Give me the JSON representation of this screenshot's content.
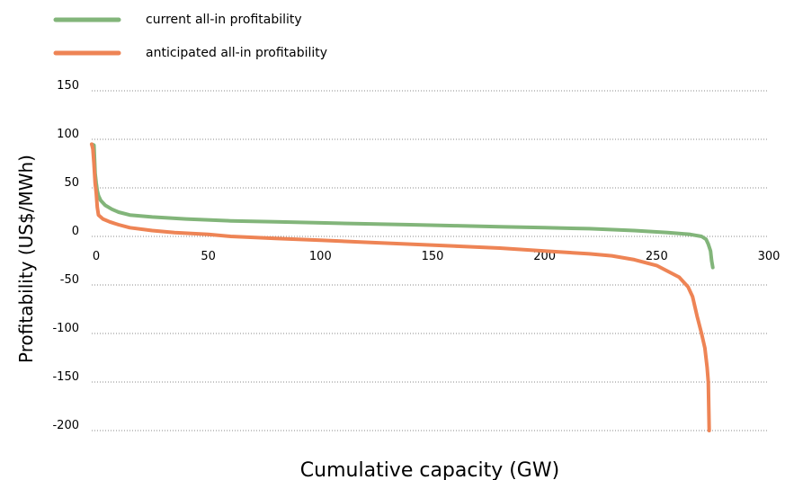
{
  "chart_data": {
    "type": "line",
    "title": "",
    "xlabel": "Cumulative capacity (GW)",
    "ylabel": "Profitability (US$/MWh)",
    "xlim": [
      0,
      300
    ],
    "ylim": [
      -200,
      150
    ],
    "x_ticks": [
      "0",
      "50",
      "100",
      "150",
      "200",
      "250",
      "300"
    ],
    "y_ticks": [
      "150",
      "100",
      "50",
      "0",
      "-50",
      "-100",
      "-150",
      "-200"
    ],
    "grid": "horizontal dotted",
    "legend_position": "top-left",
    "series": [
      {
        "name": "current all-in profitability",
        "color": "#82b57a",
        "points": [
          [
            -2,
            95
          ],
          [
            -1,
            94
          ],
          [
            -0.5,
            65
          ],
          [
            0,
            55
          ],
          [
            0.5,
            47
          ],
          [
            1,
            42
          ],
          [
            2,
            37
          ],
          [
            4,
            32
          ],
          [
            7,
            28
          ],
          [
            10,
            25
          ],
          [
            15,
            22
          ],
          [
            25,
            20
          ],
          [
            40,
            18
          ],
          [
            60,
            16
          ],
          [
            80,
            15
          ],
          [
            100,
            14
          ],
          [
            120,
            13
          ],
          [
            140,
            12
          ],
          [
            160,
            11
          ],
          [
            180,
            10
          ],
          [
            200,
            9
          ],
          [
            220,
            8
          ],
          [
            240,
            6
          ],
          [
            255,
            4
          ],
          [
            265,
            2
          ],
          [
            270,
            0
          ],
          [
            272,
            -3
          ],
          [
            273,
            -8
          ],
          [
            274,
            -15
          ],
          [
            274.5,
            -25
          ],
          [
            275,
            -32
          ]
        ]
      },
      {
        "name": "anticipated all-in profitability",
        "color": "#ee8455",
        "points": [
          [
            -2,
            95
          ],
          [
            -1.5,
            90
          ],
          [
            -1,
            75
          ],
          [
            -0.5,
            55
          ],
          [
            0,
            45
          ],
          [
            0.5,
            30
          ],
          [
            1,
            22
          ],
          [
            3,
            18
          ],
          [
            6,
            15
          ],
          [
            10,
            12
          ],
          [
            15,
            9
          ],
          [
            25,
            6
          ],
          [
            35,
            4
          ],
          [
            50,
            2
          ],
          [
            60,
            0
          ],
          [
            80,
            -2
          ],
          [
            100,
            -4
          ],
          [
            120,
            -6
          ],
          [
            140,
            -8
          ],
          [
            160,
            -10
          ],
          [
            180,
            -12
          ],
          [
            200,
            -15
          ],
          [
            220,
            -18
          ],
          [
            230,
            -20
          ],
          [
            240,
            -24
          ],
          [
            250,
            -30
          ],
          [
            255,
            -36
          ],
          [
            260,
            -42
          ],
          [
            264,
            -52
          ],
          [
            266,
            -62
          ],
          [
            268,
            -82
          ],
          [
            270,
            -100
          ],
          [
            271.5,
            -115
          ],
          [
            272.5,
            -135
          ],
          [
            273,
            -150
          ],
          [
            273.2,
            -175
          ],
          [
            273.4,
            -200
          ]
        ]
      }
    ]
  }
}
